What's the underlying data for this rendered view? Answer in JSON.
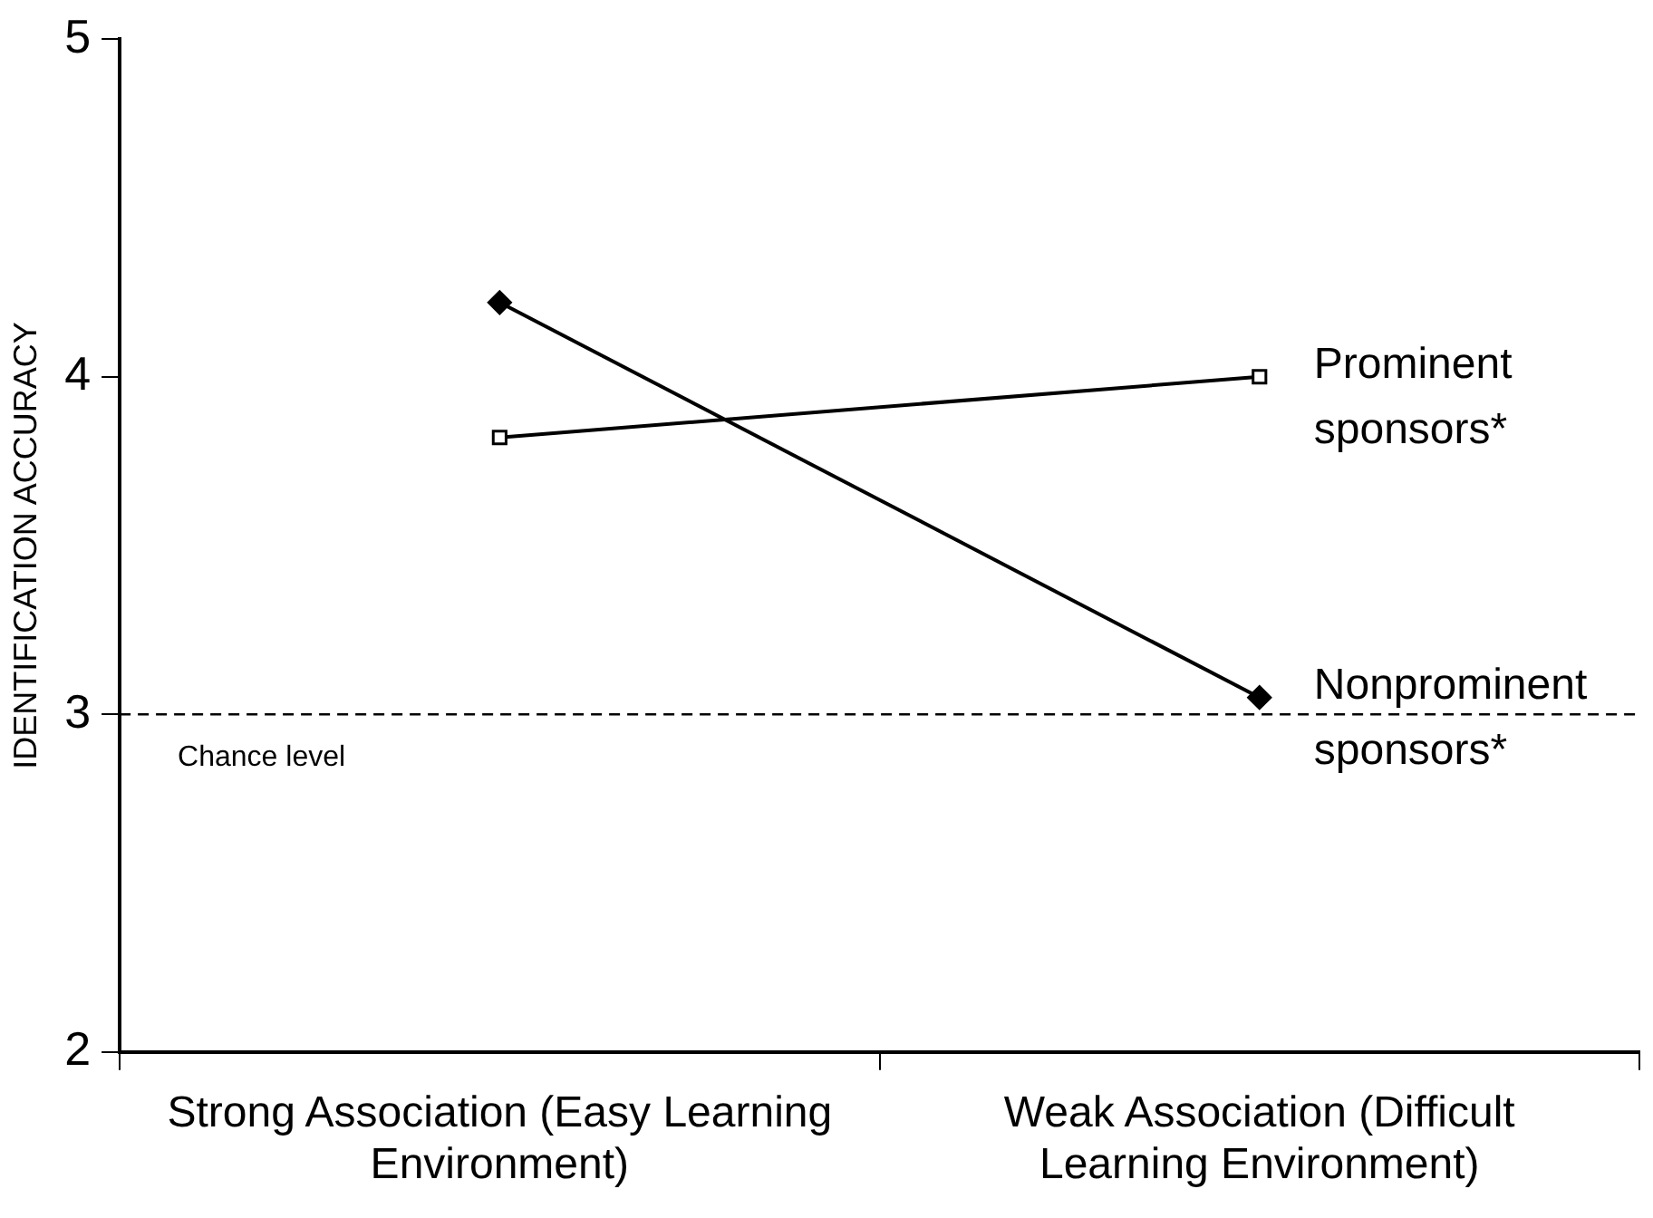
{
  "chart_data": {
    "type": "line",
    "ylabel": "IDENTIFICATION ACCURACY",
    "categories": [
      "Strong Association (Easy Learning Environment)",
      "Weak Association (Difficult Learning Environment)"
    ],
    "series": [
      {
        "name": "Prominent sponsors*",
        "color": "#000000",
        "values": [
          3.82,
          4.0
        ],
        "marker": "square"
      },
      {
        "name": "Nonprominent sponsors*",
        "color": "#000000",
        "values": [
          4.22,
          3.05
        ],
        "marker": "diamond"
      }
    ],
    "ylim": [
      2,
      5
    ],
    "yticks": [
      2,
      3,
      4,
      5
    ],
    "ref_lines": [
      {
        "axis": "y",
        "value": 3,
        "label": "Chance level",
        "line_style": "dashed"
      }
    ],
    "legend": false,
    "grid": false,
    "line_style": "solid"
  }
}
